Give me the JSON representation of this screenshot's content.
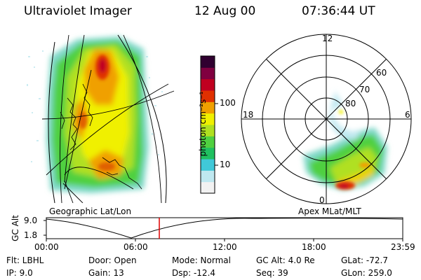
{
  "header": {
    "instrument": "Ultraviolet Imager",
    "date": "12 Aug 00",
    "time": "07:36:44 UT"
  },
  "geo_panel": {
    "label": "Geographic Lat/Lon"
  },
  "colorbar": {
    "unit_label": "photon cm⁻²s⁻¹",
    "tick_100": "100",
    "tick_10": "10",
    "palette": [
      "#f2f2f2",
      "#bfe8f0",
      "#40c8d8",
      "#20c060",
      "#50d040",
      "#b0e020",
      "#f0f000",
      "#f0a000",
      "#e03000",
      "#c00020",
      "#800040",
      "#300030"
    ]
  },
  "polar_panel": {
    "label": "Apex MLat/MLT",
    "mlt_labels": {
      "top": "12",
      "left": "18",
      "right": "6",
      "bottom": "0"
    },
    "lat_labels": [
      "60",
      "70",
      "80"
    ]
  },
  "altitude_plot": {
    "ylabel": "GC Alt",
    "y_top": "9.0",
    "y_bottom": "1.8",
    "x_ticks": [
      "00:00",
      "06:00",
      "12:00",
      "18:00",
      "23:59"
    ],
    "current_time_fraction": 0.317,
    "marker_color": "#e00000"
  },
  "info": {
    "flt": "Flt: LBHL",
    "ip": "IP:  9.0",
    "door": "Door: Open",
    "gain": "Gain: 13",
    "mode": "Mode: Normal",
    "dsp": "Dsp:  -12.4",
    "gcalt": "GC Alt: 4.0 Re",
    "seq": "Seq: 39",
    "glat": "GLat: -72.7",
    "glon": "GLon: 259.0"
  }
}
